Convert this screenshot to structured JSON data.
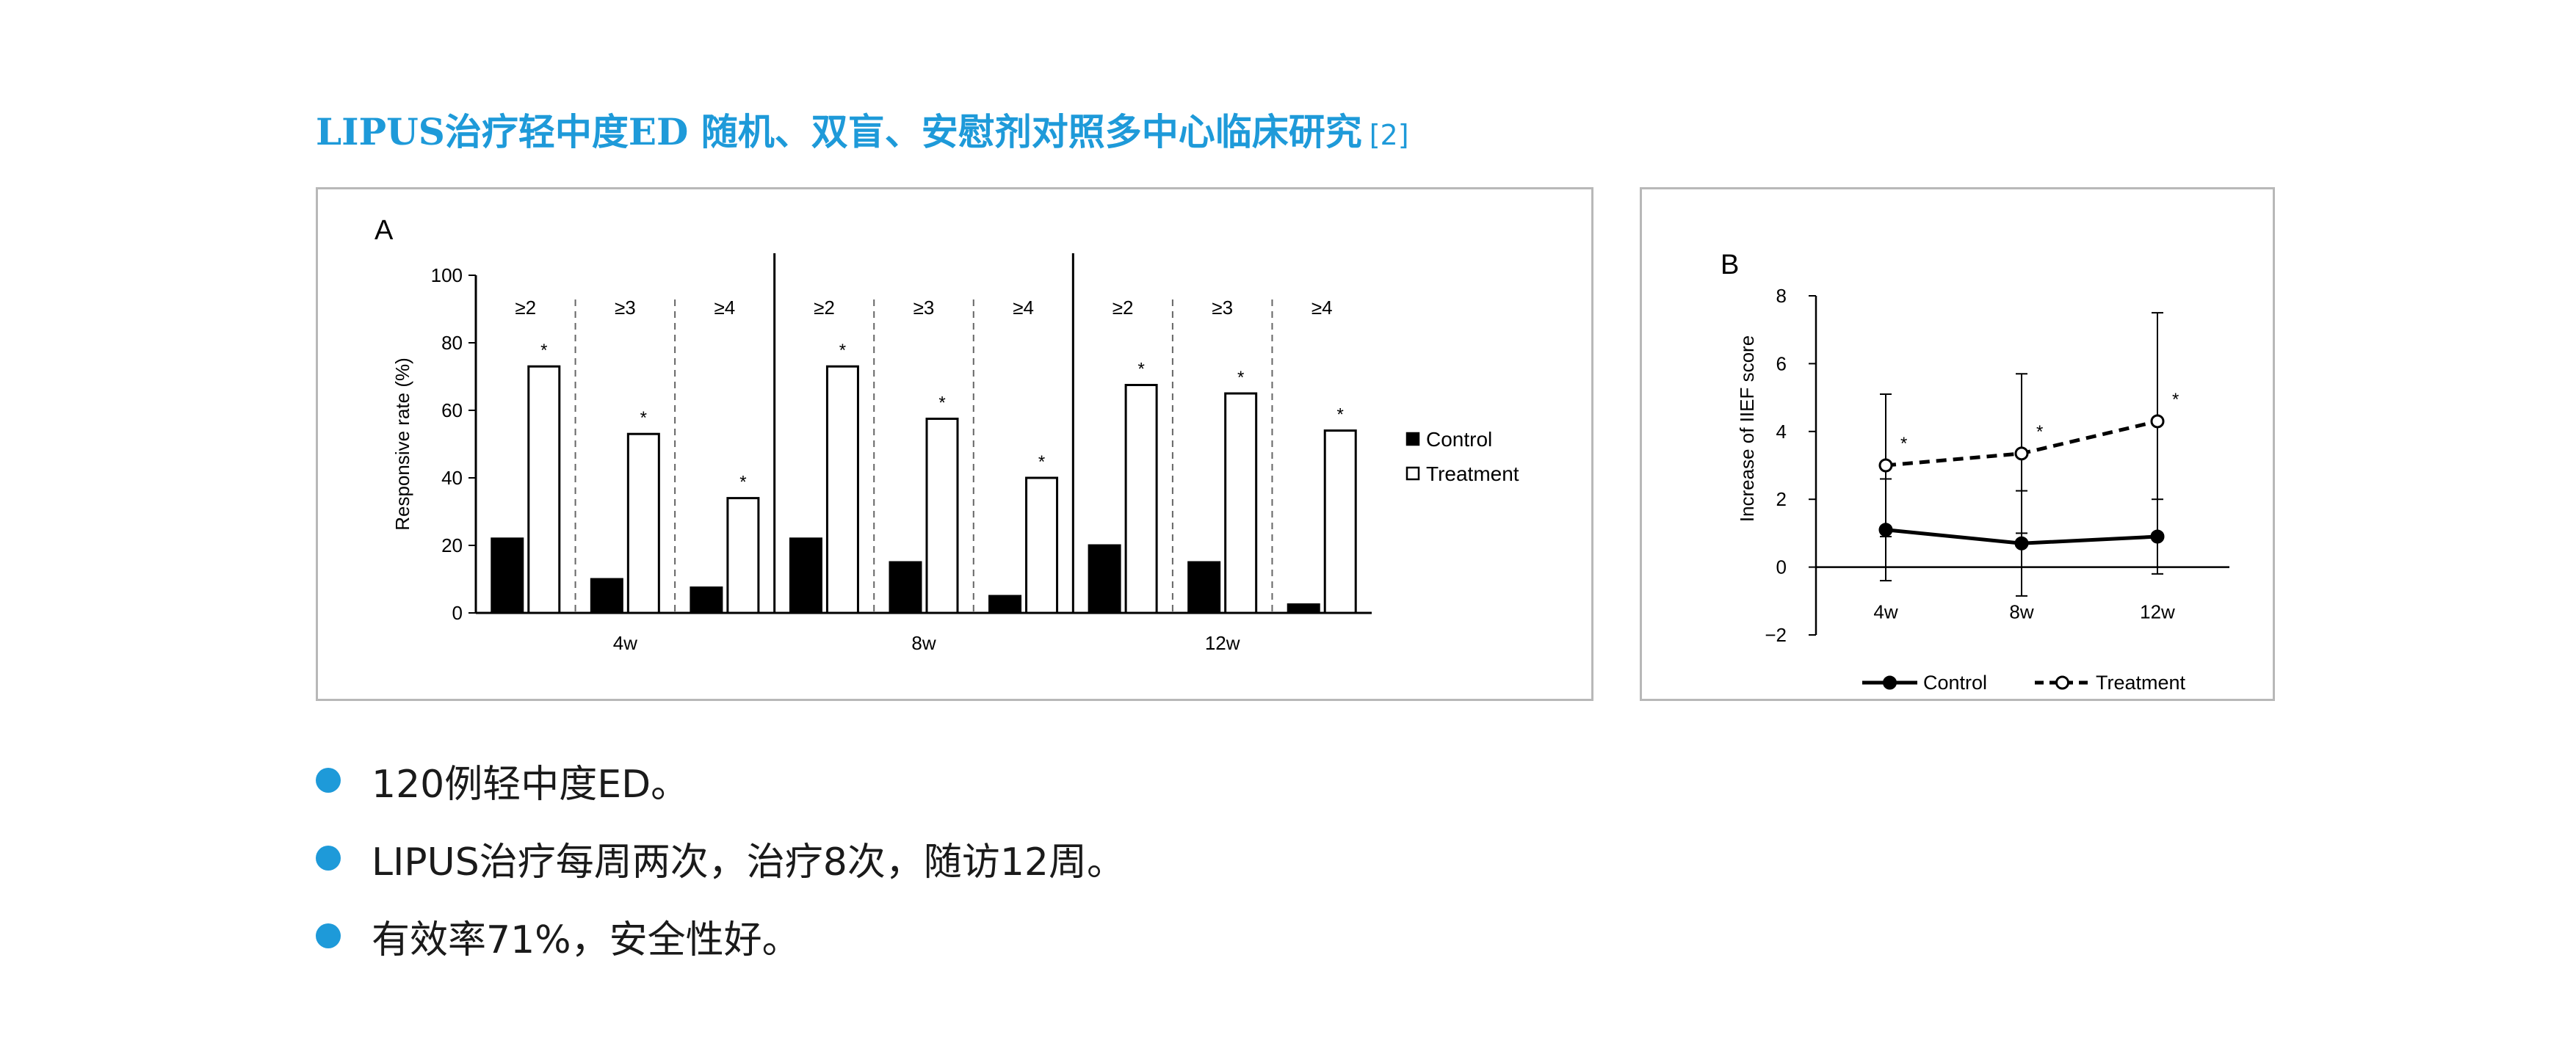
{
  "page": {
    "title": "LIPUS治疗轻中度ED 随机、双盲、安慰剂对照多中心临床研究",
    "title_ref": "[2]",
    "accent_color": "#1e9ad9"
  },
  "bullets": [
    "120例轻中度ED。",
    "LIPUS治疗每周两次，治疗8次，随访12周。",
    "有效率71%，安全性好。"
  ],
  "chart_data": [
    {
      "type": "bar",
      "panel_label": "A",
      "ylabel": "Responsive rate (%)",
      "ylim": [
        0,
        100
      ],
      "yticks": [
        0,
        20,
        40,
        60,
        80,
        100
      ],
      "groups": [
        "4w",
        "8w",
        "12w"
      ],
      "subgroups": [
        "≥2",
        "≥3",
        "≥4"
      ],
      "series": [
        {
          "name": "Control",
          "color": "#000000",
          "values": [
            [
              22,
              10,
              7.5
            ],
            [
              22,
              15,
              5
            ],
            [
              20,
              15,
              2.5
            ]
          ]
        },
        {
          "name": "Treatment",
          "color": "#ffffff",
          "values": [
            [
              73,
              53,
              34
            ],
            [
              73,
              57.5,
              40
            ],
            [
              67.5,
              65,
              54
            ]
          ]
        }
      ],
      "significance_marker": "*",
      "legend_position": "right",
      "grid": false
    },
    {
      "type": "line",
      "panel_label": "B",
      "ylabel": "Increase of IIEF score",
      "ylim": [
        -2,
        8
      ],
      "yticks": [
        -2,
        0,
        2,
        4,
        6,
        8
      ],
      "x": [
        "4w",
        "8w",
        "12w"
      ],
      "series": [
        {
          "name": "Control",
          "style": "solid",
          "marker": "filled-circle",
          "values": [
            1.1,
            0.7,
            0.9
          ],
          "error_bars": [
            [
              -0.4,
              2.6
            ],
            [
              -0.85,
              2.25
            ],
            [
              -0.2,
              2.0
            ]
          ]
        },
        {
          "name": "Treatment",
          "style": "dashed",
          "marker": "open-circle",
          "values": [
            3.0,
            3.35,
            4.3
          ],
          "error_bars": [
            [
              0.9,
              5.1
            ],
            [
              1.0,
              5.7
            ],
            [
              1.0,
              7.5
            ]
          ]
        }
      ],
      "significance_marker": "*",
      "legend_position": "bottom",
      "grid": false
    }
  ]
}
